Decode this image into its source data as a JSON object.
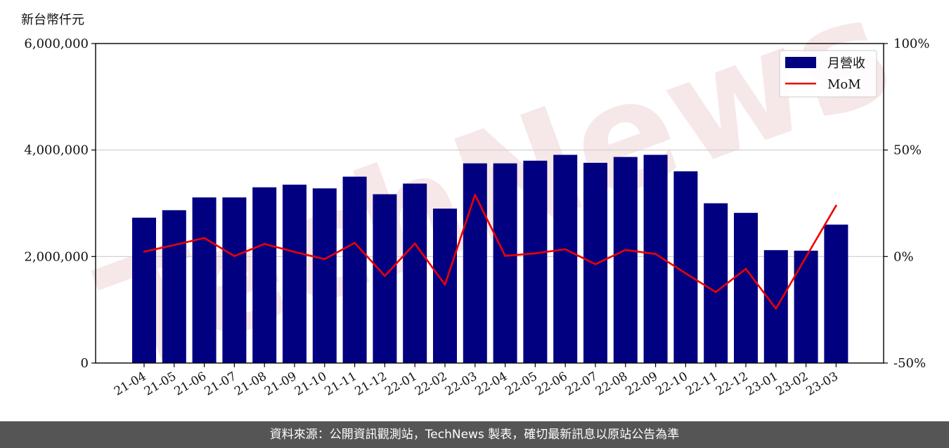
{
  "unit_label": "新台幣仟元",
  "footer": "資料來源：公開資訊觀測站，TechNews 製表，確切最新訊息以原站公告為準",
  "watermark": "TechNews",
  "colors": {
    "bar": "#000080",
    "line": "#ee0000",
    "grid": "#cccccc",
    "footer_bg": "#555555"
  },
  "chart_data": {
    "type": "bar",
    "categories": [
      "21-04",
      "21-05",
      "21-06",
      "21-07",
      "21-08",
      "21-09",
      "21-10",
      "21-11",
      "21-12",
      "22-01",
      "22-02",
      "22-03",
      "22-04",
      "22-05",
      "22-06",
      "22-07",
      "22-08",
      "22-09",
      "22-10",
      "22-11",
      "22-12",
      "23-01",
      "23-02",
      "23-03"
    ],
    "series": [
      {
        "name": "月營收",
        "type": "bar",
        "axis": "left",
        "values": [
          2730000,
          2870000,
          3110000,
          3110000,
          3300000,
          3350000,
          3280000,
          3500000,
          3170000,
          3370000,
          2900000,
          3750000,
          3750000,
          3800000,
          3910000,
          3760000,
          3870000,
          3910000,
          3600000,
          3000000,
          2820000,
          2120000,
          2110000,
          2600000
        ]
      },
      {
        "name": "MoM",
        "type": "line",
        "axis": "right",
        "values": [
          2.3,
          5.4,
          8.7,
          0.2,
          5.9,
          2.2,
          -1.2,
          6.4,
          -9.1,
          6.1,
          -13.2,
          29.0,
          0.3,
          1.5,
          3.4,
          -3.6,
          3.1,
          1.2,
          -7.9,
          -16.7,
          -5.8,
          -24.5,
          -0.2,
          23.9
        ]
      }
    ],
    "ylim_left": [
      0,
      6000000
    ],
    "yticks_left": [
      "0",
      "2,000,000",
      "4,000,000",
      "6,000,000"
    ],
    "ylim_right": [
      -50,
      100
    ],
    "yticks_right": [
      "-50%",
      "0%",
      "50%",
      "100%"
    ],
    "grid": true,
    "legend": "top-right"
  }
}
